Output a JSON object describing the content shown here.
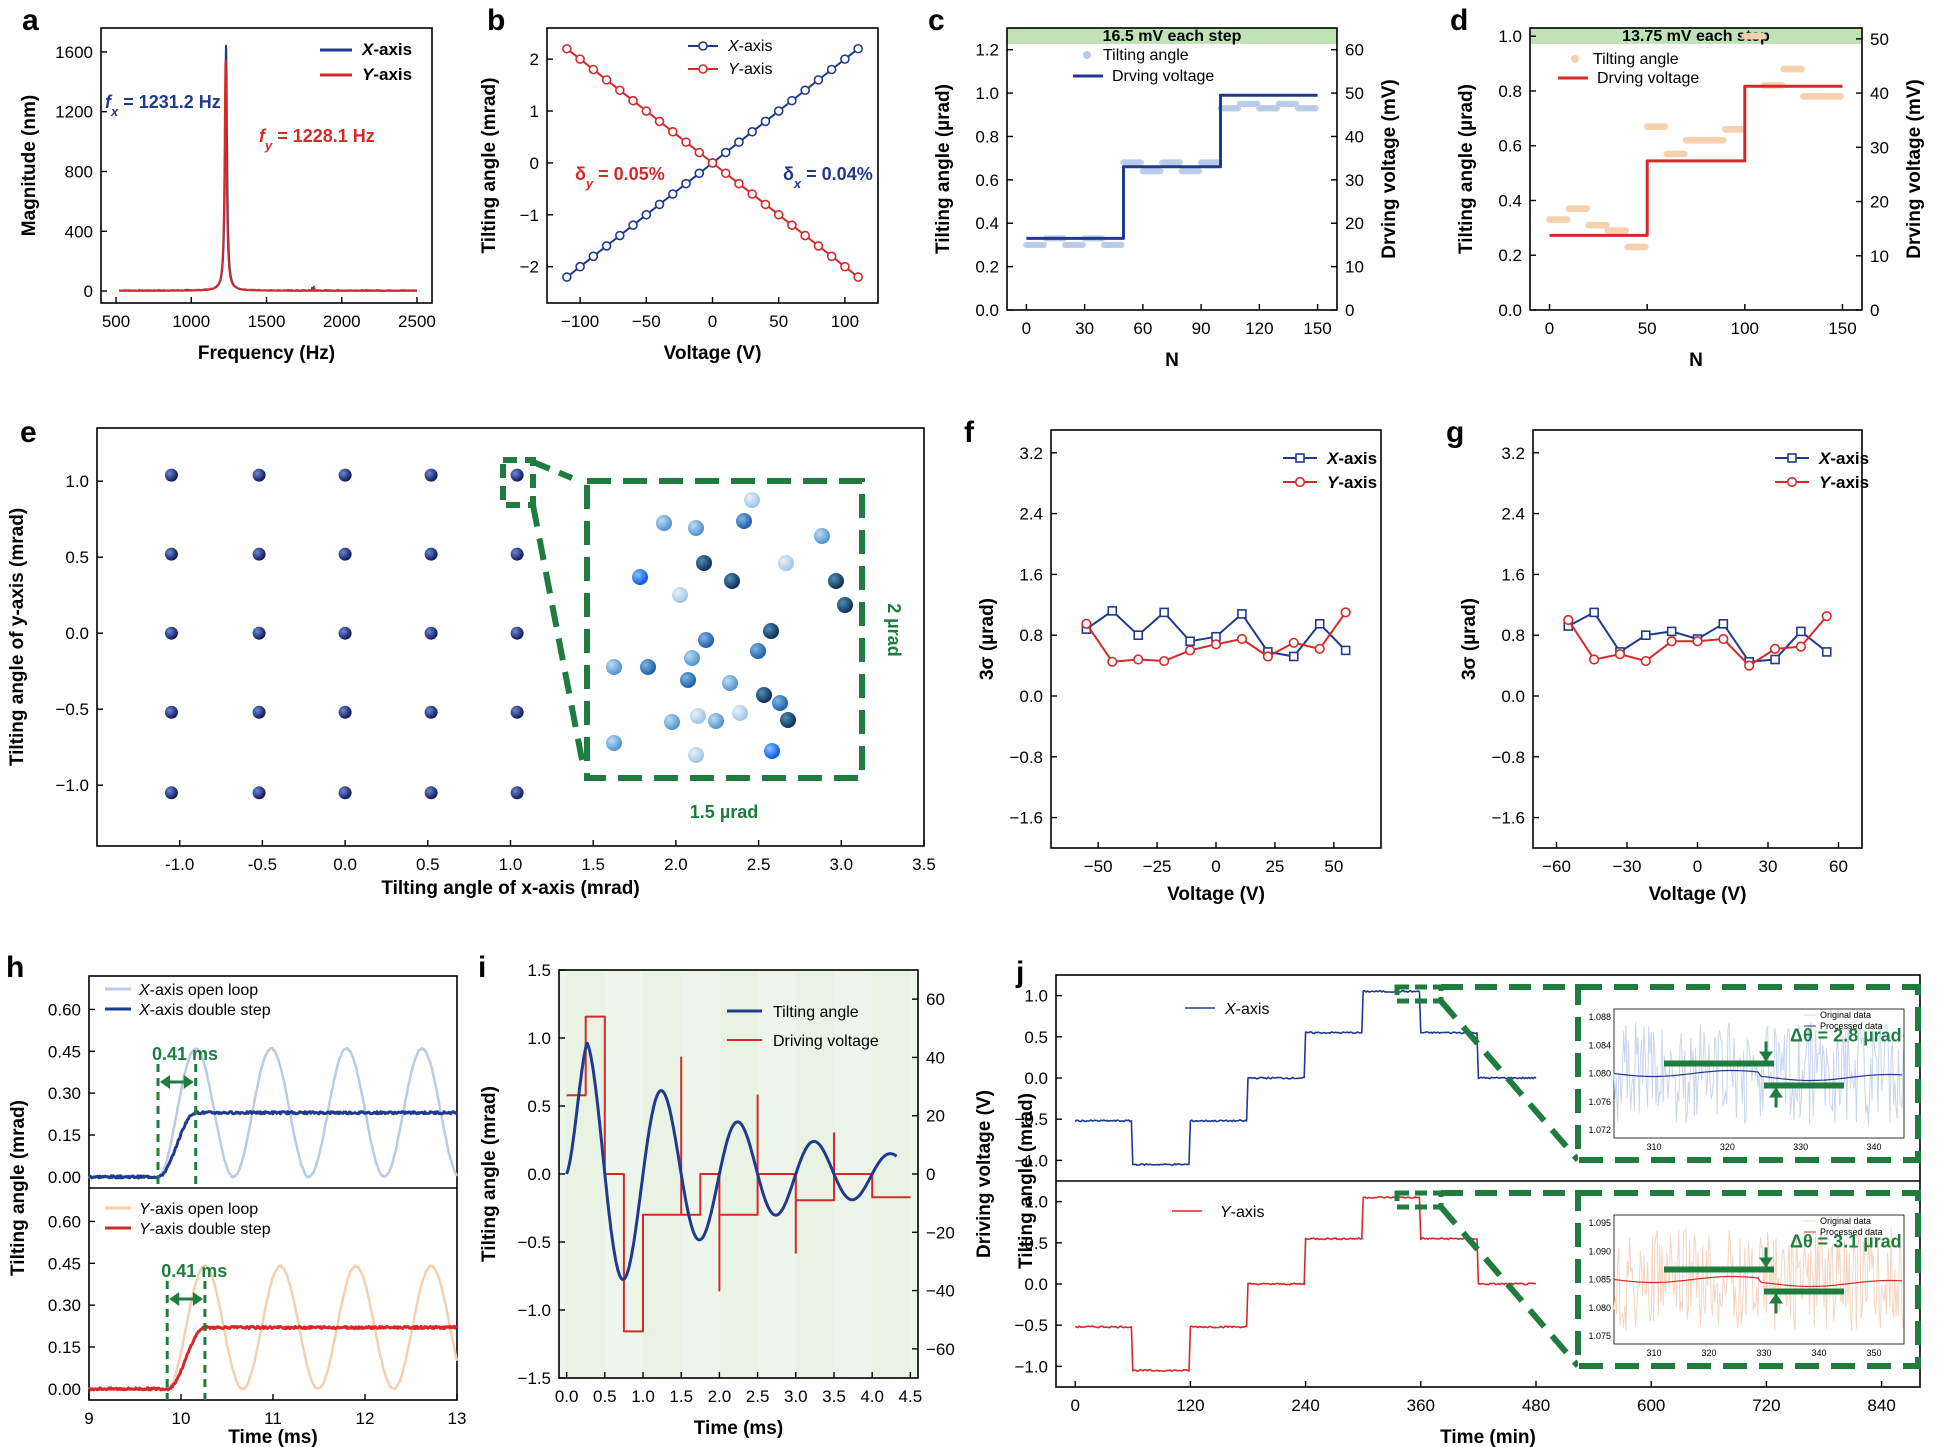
{
  "colors": {
    "navy": "#1f3a8f",
    "red": "#d42a2a",
    "green": "#1e7d3e",
    "lightblue": "#b9cbe6",
    "peach": "#f6cfae",
    "bandgreen": "#bfe3b4",
    "panelbg": "#eef6ec"
  },
  "chart_data": [
    {
      "id": "a",
      "panel": "a",
      "type": "line",
      "xlabel": "Frequency (Hz)",
      "ylabel": "Magnitude (nm)",
      "xlim": [
        400,
        2600
      ],
      "ylim": [
        -80,
        1760
      ],
      "xticks": [
        500,
        1000,
        1500,
        2000,
        2500
      ],
      "yticks": [
        0,
        400,
        800,
        1200,
        1600
      ],
      "series": [
        {
          "name": "X-axis",
          "color": "#1f3a8f",
          "peak_x": 1231.2,
          "peak_y": 1640
        },
        {
          "name": "Y-axis",
          "color": "#d42a2a",
          "peak_x": 1228.1,
          "peak_y": 1540
        }
      ],
      "annotations": {
        "fx": "f",
        "fx_sub": "x",
        "fx_val": " = 1231.2 Hz",
        "fy": "f",
        "fy_sub": "y",
        "fy_val": " = 1228.1 Hz"
      }
    },
    {
      "id": "b",
      "panel": "b",
      "type": "line",
      "xlabel": "Voltage (V)",
      "ylabel": "Tilting angle (mrad)",
      "xlim": [
        -125,
        125
      ],
      "ylim": [
        -2.7,
        2.6
      ],
      "xticks": [
        -100,
        -50,
        0,
        50,
        100
      ],
      "yticks": [
        -2,
        -1,
        0,
        1,
        2
      ],
      "series": [
        {
          "name": "X-axis",
          "color": "#1f3a8f",
          "x_start": -110,
          "x_end": 110,
          "y_start": -2.2,
          "y_end": 2.2
        },
        {
          "name": "Y-axis",
          "color": "#d42a2a",
          "x_start": -110,
          "x_end": 110,
          "y_start": 2.2,
          "y_end": -2.2
        }
      ],
      "annotations": {
        "dy": "δ",
        "dy_sub": "y",
        "dy_val": " = 0.05%",
        "dx": "δ",
        "dx_sub": "x",
        "dx_val": " = 0.04%"
      }
    },
    {
      "id": "c",
      "panel": "c",
      "type": "line",
      "xlabel": "N",
      "ylabel": "Tilting angle (µrad)",
      "ylabel2": "Drving voltage (mV)",
      "xlim": [
        -10,
        160
      ],
      "ylim": [
        0,
        1.3
      ],
      "y2lim": [
        0,
        65
      ],
      "xticks": [
        0,
        30,
        60,
        90,
        120,
        150
      ],
      "yticks": [
        0.0,
        0.2,
        0.4,
        0.6,
        0.8,
        1.0,
        1.2
      ],
      "y2ticks": [
        0,
        10,
        20,
        30,
        40,
        50,
        60
      ],
      "band": "16.5 mV each step",
      "series": [
        {
          "name": "Tilting angle",
          "color": "#b9cbe6"
        },
        {
          "name": "Drving voltage",
          "color": "#1f3a8f",
          "steps": [
            [
              0,
              16.5
            ],
            [
              50,
              33
            ],
            [
              100,
              49.5
            ],
            [
              150,
              49.5
            ]
          ]
        }
      ]
    },
    {
      "id": "d",
      "panel": "d",
      "type": "line",
      "xlabel": "N",
      "ylabel": "Tilting angle (µrad)",
      "ylabel2": "Drving voltage (mV)",
      "xlim": [
        -10,
        160
      ],
      "ylim": [
        0,
        1.03
      ],
      "y2lim": [
        0,
        52
      ],
      "xticks": [
        0,
        50,
        100,
        150
      ],
      "yticks": [
        0.0,
        0.2,
        0.4,
        0.6,
        0.8,
        1.0
      ],
      "y2ticks": [
        0,
        10,
        20,
        30,
        40,
        50
      ],
      "band": "13.75 mV each step",
      "series": [
        {
          "name": "Tilting angle",
          "color": "#f6cfae"
        },
        {
          "name": "Drving voltage",
          "color": "#d42a2a",
          "steps": [
            [
              0,
              13.75
            ],
            [
              50,
              27.5
            ],
            [
              100,
              41.25
            ],
            [
              150,
              41.25
            ]
          ]
        }
      ]
    },
    {
      "id": "e",
      "panel": "e",
      "type": "scatter",
      "xlabel": "Tilting angle of x-axis (mrad)",
      "ylabel": "Tilting angle of y-axis (mrad)",
      "xlim": [
        -1.5,
        3.5
      ],
      "ylim": [
        -1.4,
        1.35
      ],
      "xticks": [
        -1.0,
        -0.5,
        0.0,
        0.5,
        1.0,
        1.5,
        2.0,
        2.5,
        3.0,
        3.5
      ],
      "yticks": [
        -1.0,
        -0.5,
        0.0,
        0.5,
        1.0
      ],
      "grid": [
        -1.05,
        -0.52,
        0.0,
        0.52,
        1.04
      ],
      "inset_w": "1.5 µrad",
      "inset_h": "2 µrad"
    },
    {
      "id": "f",
      "panel": "f",
      "type": "line",
      "xlabel": "Voltage (V)",
      "ylabel": "3σ (µrad)",
      "xlim": [
        -70,
        70
      ],
      "ylim": [
        -2.0,
        3.5
      ],
      "xticks": [
        -50,
        -25,
        0,
        25,
        50
      ],
      "yticks": [
        -1.6,
        -0.8,
        0.0,
        0.8,
        1.6,
        2.4,
        3.2
      ],
      "x": [
        -55,
        -44,
        -33,
        -22,
        -11,
        0,
        11,
        22,
        33,
        44,
        55
      ],
      "series": [
        {
          "name": "X-axis",
          "color": "#1f3a8f",
          "values": [
            0.88,
            1.12,
            0.8,
            1.1,
            0.72,
            0.78,
            1.08,
            0.58,
            0.52,
            0.95,
            0.6
          ]
        },
        {
          "name": "Y-axis",
          "color": "#d42a2a",
          "values": [
            0.95,
            0.45,
            0.48,
            0.46,
            0.6,
            0.68,
            0.75,
            0.52,
            0.7,
            0.62,
            1.1
          ]
        }
      ]
    },
    {
      "id": "g",
      "panel": "g",
      "type": "line",
      "xlabel": "Voltage (V)",
      "ylabel": "3σ (µrad)",
      "xlim": [
        -70,
        70
      ],
      "ylim": [
        -2.0,
        3.5
      ],
      "xticks": [
        -60,
        -30,
        0,
        30,
        60
      ],
      "yticks": [
        -1.6,
        -0.8,
        0.0,
        0.8,
        1.6,
        2.4,
        3.2
      ],
      "x": [
        -55,
        -44,
        -33,
        -22,
        -11,
        0,
        11,
        22,
        33,
        44,
        55
      ],
      "series": [
        {
          "name": "X-axis",
          "color": "#1f3a8f",
          "values": [
            0.92,
            1.1,
            0.58,
            0.8,
            0.85,
            0.75,
            0.95,
            0.45,
            0.48,
            0.85,
            0.58
          ]
        },
        {
          "name": "Y-axis",
          "color": "#d42a2a",
          "values": [
            1.0,
            0.48,
            0.55,
            0.46,
            0.72,
            0.72,
            0.75,
            0.4,
            0.62,
            0.65,
            1.05
          ]
        }
      ]
    },
    {
      "id": "h",
      "panel": "h",
      "type": "line",
      "xlabel": "Time (ms)",
      "ylabel": "Tilting angle (mrad)",
      "xlim": [
        9,
        13
      ],
      "ylim": [
        -0.05,
        0.7
      ],
      "xticks": [
        9,
        10,
        11,
        12,
        13
      ],
      "yticks": [
        0.0,
        0.15,
        0.3,
        0.45,
        0.6
      ],
      "series": [
        {
          "name": "X-axis open loop",
          "color": "#b9cbe6"
        },
        {
          "name": "X-axis double step",
          "color": "#1f3a8f",
          "level": 0.23
        },
        {
          "name": "Y-axis open loop",
          "color": "#f6cfae"
        },
        {
          "name": "Y-axis double step",
          "color": "#d42a2a",
          "level": 0.22
        }
      ],
      "rise": "0.41 ms"
    },
    {
      "id": "i",
      "panel": "i",
      "type": "line",
      "xlabel": "Time (ms)",
      "ylabel": "Tilting angle (mrad)",
      "ylabel2": "Driving voltage (V)",
      "xlim": [
        -0.1,
        4.6
      ],
      "ylim": [
        -1.5,
        1.5
      ],
      "y2lim": [
        -70,
        70
      ],
      "xticks": [
        0.0,
        0.5,
        1.0,
        1.5,
        2.0,
        2.5,
        3.0,
        3.5,
        4.0,
        4.5
      ],
      "yticks": [
        -1.5,
        -1.0,
        -0.5,
        0.0,
        0.5,
        1.0,
        1.5
      ],
      "y2ticks": [
        -60,
        -40,
        -20,
        0,
        20,
        40,
        60
      ],
      "series": [
        {
          "name": "Tilting angle",
          "color": "#1f3a8f"
        },
        {
          "name": "Driving voltage",
          "color": "#d42a2a"
        }
      ]
    },
    {
      "id": "j",
      "panel": "j",
      "type": "line",
      "xlabel": "Time (min)",
      "ylabel": "Tilting angle (mrad)",
      "xlim": [
        -20,
        880
      ],
      "ylim": [
        -1.2,
        1.2
      ],
      "xticks": [
        0,
        120,
        240,
        360,
        480,
        600,
        720,
        840
      ],
      "yticks": [
        -1.0,
        -0.5,
        0.0,
        0.5,
        1.0
      ],
      "series": [
        {
          "name": "X-axis",
          "color": "#1f3a8f"
        },
        {
          "name": "Y-axis",
          "color": "#d42a2a"
        }
      ],
      "levels": [
        -0.52,
        -1.05,
        -0.52,
        0.0,
        0.55,
        1.05,
        0.55,
        0.0
      ],
      "inset_top": {
        "legend": [
          "Original data",
          "Processed data"
        ],
        "delta": "Δθ = 2.8 µrad",
        "xticks": [
          310,
          320,
          330,
          340
        ],
        "yticks": [
          "1.088",
          "1.084",
          "1.080",
          "1.076",
          "1.072"
        ]
      },
      "inset_bot": {
        "legend": [
          "Original data",
          "Processed data"
        ],
        "delta": "Δθ = 3.1 µrad",
        "xticks": [
          310,
          320,
          330,
          340,
          350
        ],
        "yticks": [
          "1.095",
          "1.090",
          "1.085",
          "1.080",
          "1.075"
        ]
      }
    }
  ]
}
